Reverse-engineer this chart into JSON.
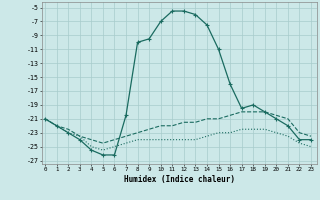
{
  "xlabel": "Humidex (Indice chaleur)",
  "background_color": "#cce8e8",
  "grid_color": "#a8cccc",
  "line_color": "#1a6b60",
  "x_ticks": [
    0,
    1,
    2,
    3,
    4,
    5,
    6,
    7,
    8,
    9,
    10,
    11,
    12,
    13,
    14,
    15,
    16,
    17,
    18,
    19,
    20,
    21,
    22,
    23
  ],
  "y_ticks": [
    -5,
    -7,
    -9,
    -11,
    -13,
    -15,
    -17,
    -19,
    -21,
    -23,
    -25,
    -27
  ],
  "xlim": [
    -0.3,
    23.5
  ],
  "ylim": [
    -27.5,
    -4.2
  ],
  "series": [
    {
      "x": [
        0,
        1,
        2,
        3,
        4,
        5,
        6,
        7,
        8,
        9,
        10,
        11,
        12,
        13,
        14,
        15,
        16,
        17,
        18,
        19,
        20,
        21,
        22,
        23
      ],
      "y": [
        -21,
        -22,
        -23,
        -24,
        -25.5,
        -26.2,
        -26.2,
        -20.5,
        -10,
        -9.5,
        -7,
        -5.5,
        -5.5,
        -6,
        -7.5,
        -11,
        -16,
        -19.5,
        -19,
        -20,
        -21,
        -22,
        -24,
        -24
      ],
      "linestyle": "-",
      "marker": "+"
    },
    {
      "x": [
        0,
        1,
        2,
        3,
        4,
        5,
        6,
        7,
        8,
        9,
        10,
        11,
        12,
        13,
        14,
        15,
        16,
        17,
        18,
        19,
        20,
        21,
        22,
        23
      ],
      "y": [
        -21,
        -22,
        -22.5,
        -23.5,
        -24,
        -24.5,
        -24,
        -23.5,
        -23,
        -22.5,
        -22,
        -22,
        -21.5,
        -21.5,
        -21,
        -21,
        -20.5,
        -20,
        -20,
        -20,
        -20.5,
        -21,
        -23,
        -23.5
      ],
      "linestyle": "--",
      "marker": null
    },
    {
      "x": [
        0,
        1,
        2,
        3,
        4,
        5,
        6,
        7,
        8,
        9,
        10,
        11,
        12,
        13,
        14,
        15,
        16,
        17,
        18,
        19,
        20,
        21,
        22,
        23
      ],
      "y": [
        -21,
        -22,
        -23,
        -23.5,
        -25,
        -25.5,
        -25,
        -24.5,
        -24,
        -24,
        -24,
        -24,
        -24,
        -24,
        -23.5,
        -23,
        -23,
        -22.5,
        -22.5,
        -22.5,
        -23,
        -23.5,
        -24.5,
        -25
      ],
      "linestyle": ":",
      "marker": null
    }
  ]
}
